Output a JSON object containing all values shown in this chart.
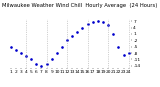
{
  "title": "Milwaukee Weather Wind Chill  Hourly Average  (24 Hours)",
  "hours": [
    1,
    2,
    3,
    4,
    5,
    6,
    7,
    8,
    9,
    10,
    11,
    12,
    13,
    14,
    15,
    16,
    17,
    18,
    19,
    20,
    21,
    22,
    23,
    24
  ],
  "values": [
    -5,
    -6.5,
    -8,
    -9.5,
    -11,
    -13,
    -14,
    -13,
    -11,
    -8,
    -5,
    -2,
    0,
    2,
    4,
    5.5,
    6.5,
    7,
    6.5,
    5,
    1,
    -5,
    -9,
    -8
  ],
  "dot_color": "#0000cc",
  "bg_color": "#ffffff",
  "grid_color": "#aaaaaa",
  "ylabel_color": "#000000",
  "ylim": [
    -15,
    8
  ],
  "yticks": [
    7,
    4,
    1,
    -2,
    -5,
    -8,
    -11,
    -14
  ],
  "title_fontsize": 3.8,
  "tick_fontsize": 3.2,
  "marker_size": 1.8,
  "grid_hours": [
    4,
    8,
    12,
    16,
    20,
    24
  ]
}
